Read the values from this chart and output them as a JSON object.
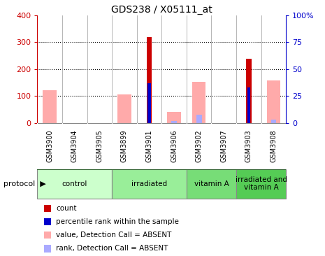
{
  "title": "GDS238 / X05111_at",
  "samples": [
    "GSM3900",
    "GSM3904",
    "GSM3905",
    "GSM3899",
    "GSM3901",
    "GSM3906",
    "GSM3902",
    "GSM3907",
    "GSM3903",
    "GSM3908"
  ],
  "count_values": [
    0,
    0,
    0,
    0,
    320,
    0,
    0,
    0,
    238,
    0
  ],
  "percentile_values": [
    0,
    0,
    0,
    0,
    37,
    0,
    0,
    0,
    33,
    0
  ],
  "absent_value_values": [
    122,
    0,
    0,
    106,
    0,
    42,
    152,
    0,
    0,
    158
  ],
  "absent_rank_values": [
    0,
    0,
    0,
    0,
    0,
    7,
    30,
    0,
    0,
    12
  ],
  "groups": [
    {
      "label": "control",
      "start": 0,
      "end": 3,
      "color": "#ccffcc"
    },
    {
      "label": "irradiated",
      "start": 3,
      "end": 6,
      "color": "#99ee99"
    },
    {
      "label": "vitamin A",
      "start": 6,
      "end": 8,
      "color": "#77dd77"
    },
    {
      "label": "irradiated and\nvitamin A",
      "start": 8,
      "end": 10,
      "color": "#55cc55"
    }
  ],
  "left_yticks": [
    0,
    100,
    200,
    300,
    400
  ],
  "right_yticks": [
    0,
    25,
    50,
    75,
    100
  ],
  "left_color": "#cc0000",
  "right_color": "#0000cc",
  "count_color": "#cc0000",
  "percentile_color": "#0000cc",
  "absent_value_color": "#ffaaaa",
  "absent_rank_color": "#aaaaff",
  "bg_color": "#ffffff",
  "label_bg_color": "#cccccc",
  "legend_items": [
    {
      "label": "count",
      "color": "#cc0000"
    },
    {
      "label": "percentile rank within the sample",
      "color": "#0000cc"
    },
    {
      "label": "value, Detection Call = ABSENT",
      "color": "#ffaaaa"
    },
    {
      "label": "rank, Detection Call = ABSENT",
      "color": "#aaaaff"
    }
  ]
}
